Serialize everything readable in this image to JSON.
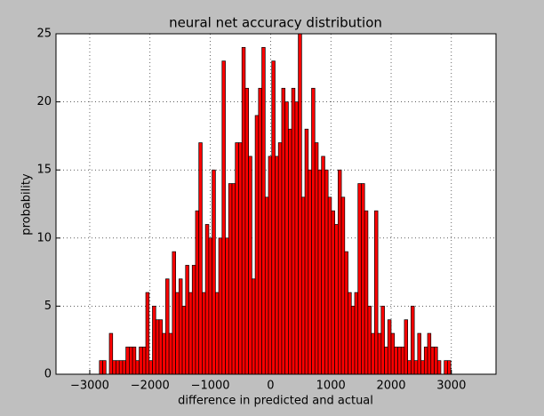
{
  "chart_data": {
    "type": "histogram",
    "title": "neural net accuracy distribution",
    "x_label": "difference in predicted and actual",
    "y_label": "probability",
    "bins": [
      -2840,
      -2785,
      -2730,
      -2675,
      -2620,
      -2565,
      -2510,
      -2455,
      -2400,
      -2345,
      -2290,
      -2235,
      -2180,
      -2125,
      -2070,
      -2015,
      -1960,
      -1905,
      -1850,
      -1795,
      -1740,
      -1685,
      -1630,
      -1575,
      -1520,
      -1465,
      -1410,
      -1355,
      -1300,
      -1245,
      -1190,
      -1135,
      -1080,
      -1025,
      -970,
      -915,
      -860,
      -805,
      -750,
      -695,
      -640,
      -585,
      -530,
      -475,
      -420,
      -365,
      -310,
      -255,
      -200,
      -145,
      -90,
      -35,
      20,
      75,
      130,
      185,
      240,
      295,
      350,
      405,
      460,
      515,
      570,
      625,
      680,
      735,
      790,
      845,
      900,
      955,
      1010,
      1065,
      1120,
      1175,
      1230,
      1285,
      1340,
      1395,
      1450,
      1505,
      1560,
      1615,
      1670,
      1725,
      1780,
      1835,
      1890,
      1945,
      2000,
      2055,
      2110,
      2165,
      2220,
      2275,
      2330,
      2385,
      2440,
      2495,
      2550,
      2605,
      2660,
      2715,
      2770,
      2825,
      2880,
      2935,
      2990
    ],
    "values": [
      1,
      1,
      0,
      3,
      1,
      1,
      1,
      1,
      2,
      2,
      2,
      1,
      2,
      2,
      6,
      1,
      5,
      4,
      4,
      3,
      7,
      3,
      9,
      6,
      7,
      5,
      8,
      6,
      8,
      12,
      17,
      6,
      11,
      10,
      15,
      6,
      10,
      23,
      10,
      14,
      14,
      17,
      17,
      24,
      21,
      16,
      7,
      19,
      21,
      24,
      13,
      16,
      23,
      16,
      17,
      21,
      20,
      18,
      21,
      20,
      25,
      13,
      18,
      15,
      21,
      17,
      15,
      16,
      15,
      13,
      12,
      11,
      15,
      13,
      9,
      6,
      5,
      6,
      14,
      14,
      12,
      5,
      3,
      12,
      3,
      5,
      2,
      4,
      3,
      2,
      2,
      2,
      4,
      1,
      5,
      1,
      3,
      1,
      2,
      3,
      2,
      2,
      1,
      0,
      1,
      1
    ],
    "color": "#ff0000",
    "edgecolor": "#000000",
    "xlim": [
      -3560,
      3740
    ],
    "xticks": [
      {
        "value": -3000,
        "label": "−3000"
      },
      {
        "value": -2000,
        "label": "−2000"
      },
      {
        "value": -1000,
        "label": "−1000"
      },
      0,
      1000,
      2000,
      3000
    ],
    "ylim": [
      0,
      25
    ],
    "yticks": [
      0,
      5,
      10,
      15,
      20,
      25
    ],
    "grid": true
  }
}
